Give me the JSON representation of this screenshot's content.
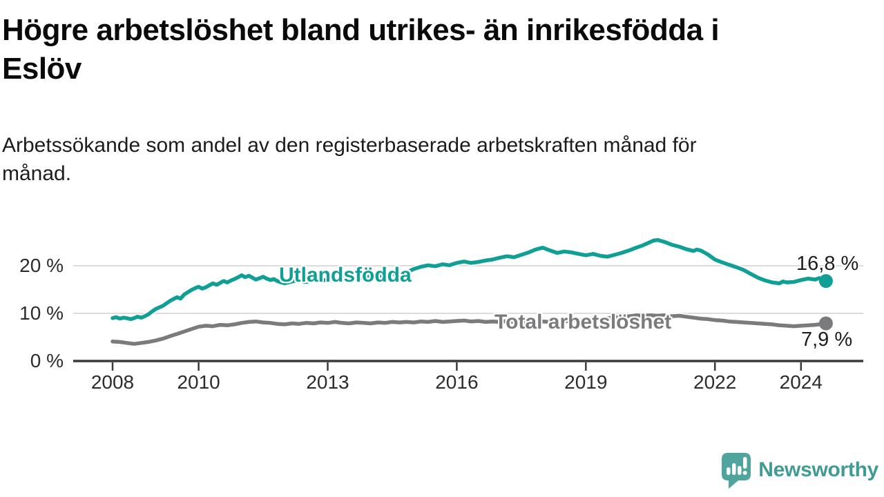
{
  "title_lines": [
    "Högre arbetslöshet bland utrikes- än inrikesfödda i",
    "Eslöv"
  ],
  "subtitle_lines": [
    "Arbetssökande som andel av den registerbaserade arbetskraften månad för",
    "månad."
  ],
  "chart_data": {
    "type": "line",
    "title": "Högre arbetslöshet bland utrikes- än inrikesfödda i Eslöv",
    "subtitle": "Arbetssökande som andel av den registerbaserade arbetskraften månad för månad.",
    "xlabel": "",
    "ylabel": "",
    "xlim": [
      2007.1,
      2025.5
    ],
    "ylim": [
      0,
      27
    ],
    "grid": "horizontal",
    "grid_color": "#dcdcdc",
    "axis_color": "#3a3a3a",
    "tick_label_color": "#2c2c2c",
    "y_ticks": [
      {
        "value": 0,
        "label": "0 %"
      },
      {
        "value": 10,
        "label": "10 %"
      },
      {
        "value": 20,
        "label": "20 %"
      }
    ],
    "x_ticks": [
      {
        "year": 2008,
        "label": "2008"
      },
      {
        "year": 2010,
        "label": "2010"
      },
      {
        "year": 2013,
        "label": "2013"
      },
      {
        "year": 2016,
        "label": "2016"
      },
      {
        "year": 2019,
        "label": "2019"
      },
      {
        "year": 2022,
        "label": "2022"
      },
      {
        "year": 2024,
        "label": "2024"
      }
    ],
    "series": [
      {
        "name": "Utlandsfödda",
        "color": "#0f9f95",
        "end_label": "16,8 %",
        "end_value": 16.8,
        "points": [
          [
            2008.0,
            9.0
          ],
          [
            2008.08,
            9.2
          ],
          [
            2008.17,
            8.9
          ],
          [
            2008.25,
            9.1
          ],
          [
            2008.33,
            9.0
          ],
          [
            2008.42,
            8.8
          ],
          [
            2008.5,
            9.0
          ],
          [
            2008.58,
            9.3
          ],
          [
            2008.67,
            9.1
          ],
          [
            2008.75,
            9.4
          ],
          [
            2008.83,
            9.8
          ],
          [
            2008.92,
            10.4
          ],
          [
            2009.0,
            10.9
          ],
          [
            2009.17,
            11.6
          ],
          [
            2009.33,
            12.6
          ],
          [
            2009.5,
            13.4
          ],
          [
            2009.58,
            13.1
          ],
          [
            2009.67,
            14.0
          ],
          [
            2009.83,
            14.9
          ],
          [
            2009.92,
            15.3
          ],
          [
            2010.0,
            15.6
          ],
          [
            2010.08,
            15.2
          ],
          [
            2010.17,
            15.5
          ],
          [
            2010.25,
            15.9
          ],
          [
            2010.33,
            16.3
          ],
          [
            2010.42,
            16.0
          ],
          [
            2010.5,
            16.4
          ],
          [
            2010.58,
            16.8
          ],
          [
            2010.67,
            16.5
          ],
          [
            2010.75,
            16.9
          ],
          [
            2010.83,
            17.2
          ],
          [
            2010.92,
            17.6
          ],
          [
            2011.0,
            18.0
          ],
          [
            2011.08,
            17.6
          ],
          [
            2011.17,
            17.9
          ],
          [
            2011.25,
            17.5
          ],
          [
            2011.33,
            17.1
          ],
          [
            2011.42,
            17.4
          ],
          [
            2011.5,
            17.7
          ],
          [
            2011.58,
            17.3
          ],
          [
            2011.67,
            17.0
          ],
          [
            2011.75,
            17.2
          ],
          [
            2011.83,
            16.8
          ],
          [
            2011.92,
            16.5
          ],
          [
            2012.0,
            16.3
          ],
          [
            2012.17,
            16.7
          ],
          [
            2012.33,
            16.9
          ],
          [
            2012.5,
            16.6
          ],
          [
            2012.67,
            17.0
          ],
          [
            2012.83,
            16.8
          ],
          [
            2013.0,
            17.1
          ],
          [
            2013.17,
            16.9
          ],
          [
            2013.33,
            17.3
          ],
          [
            2013.5,
            17.1
          ],
          [
            2013.67,
            17.5
          ],
          [
            2013.83,
            17.4
          ],
          [
            2014.0,
            17.8
          ],
          [
            2014.17,
            17.6
          ],
          [
            2014.33,
            18.0
          ],
          [
            2014.5,
            18.3
          ],
          [
            2014.67,
            18.1
          ],
          [
            2014.83,
            18.6
          ],
          [
            2015.0,
            19.3
          ],
          [
            2015.17,
            19.8
          ],
          [
            2015.33,
            20.1
          ],
          [
            2015.5,
            19.9
          ],
          [
            2015.67,
            20.3
          ],
          [
            2015.83,
            20.1
          ],
          [
            2016.0,
            20.6
          ],
          [
            2016.17,
            20.9
          ],
          [
            2016.33,
            20.6
          ],
          [
            2016.5,
            20.8
          ],
          [
            2016.67,
            21.1
          ],
          [
            2016.83,
            21.3
          ],
          [
            2017.0,
            21.7
          ],
          [
            2017.17,
            22.0
          ],
          [
            2017.33,
            21.8
          ],
          [
            2017.5,
            22.3
          ],
          [
            2017.67,
            22.8
          ],
          [
            2017.83,
            23.4
          ],
          [
            2018.0,
            23.8
          ],
          [
            2018.17,
            23.2
          ],
          [
            2018.33,
            22.7
          ],
          [
            2018.5,
            23.0
          ],
          [
            2018.67,
            22.8
          ],
          [
            2018.83,
            22.5
          ],
          [
            2019.0,
            22.2
          ],
          [
            2019.17,
            22.5
          ],
          [
            2019.33,
            22.1
          ],
          [
            2019.5,
            21.9
          ],
          [
            2019.67,
            22.3
          ],
          [
            2019.83,
            22.7
          ],
          [
            2020.0,
            23.2
          ],
          [
            2020.17,
            23.8
          ],
          [
            2020.33,
            24.3
          ],
          [
            2020.5,
            25.0
          ],
          [
            2020.58,
            25.3
          ],
          [
            2020.67,
            25.4
          ],
          [
            2020.83,
            25.0
          ],
          [
            2021.0,
            24.4
          ],
          [
            2021.17,
            24.0
          ],
          [
            2021.33,
            23.5
          ],
          [
            2021.5,
            23.1
          ],
          [
            2021.58,
            23.4
          ],
          [
            2021.67,
            23.2
          ],
          [
            2021.83,
            22.4
          ],
          [
            2022.0,
            21.3
          ],
          [
            2022.17,
            20.7
          ],
          [
            2022.33,
            20.2
          ],
          [
            2022.5,
            19.7
          ],
          [
            2022.67,
            19.1
          ],
          [
            2022.83,
            18.3
          ],
          [
            2023.0,
            17.5
          ],
          [
            2023.17,
            16.9
          ],
          [
            2023.33,
            16.5
          ],
          [
            2023.5,
            16.3
          ],
          [
            2023.58,
            16.7
          ],
          [
            2023.67,
            16.5
          ],
          [
            2023.83,
            16.6
          ],
          [
            2024.0,
            17.0
          ],
          [
            2024.17,
            17.3
          ],
          [
            2024.33,
            17.1
          ],
          [
            2024.42,
            17.4
          ],
          [
            2024.5,
            17.2
          ],
          [
            2024.58,
            16.8
          ]
        ]
      },
      {
        "name": "Total arbetslöshet",
        "color": "#7b7b7e",
        "end_label": "7,9 %",
        "end_value": 7.9,
        "points": [
          [
            2008.0,
            4.1
          ],
          [
            2008.17,
            4.0
          ],
          [
            2008.33,
            3.8
          ],
          [
            2008.5,
            3.6
          ],
          [
            2008.67,
            3.8
          ],
          [
            2008.83,
            4.0
          ],
          [
            2009.0,
            4.3
          ],
          [
            2009.17,
            4.7
          ],
          [
            2009.33,
            5.2
          ],
          [
            2009.5,
            5.7
          ],
          [
            2009.67,
            6.2
          ],
          [
            2009.83,
            6.7
          ],
          [
            2010.0,
            7.2
          ],
          [
            2010.17,
            7.4
          ],
          [
            2010.33,
            7.3
          ],
          [
            2010.5,
            7.6
          ],
          [
            2010.67,
            7.5
          ],
          [
            2010.83,
            7.7
          ],
          [
            2011.0,
            8.0
          ],
          [
            2011.17,
            8.2
          ],
          [
            2011.33,
            8.3
          ],
          [
            2011.5,
            8.1
          ],
          [
            2011.67,
            8.0
          ],
          [
            2011.83,
            7.8
          ],
          [
            2012.0,
            7.7
          ],
          [
            2012.17,
            7.9
          ],
          [
            2012.33,
            7.8
          ],
          [
            2012.5,
            8.0
          ],
          [
            2012.67,
            7.9
          ],
          [
            2012.83,
            8.1
          ],
          [
            2013.0,
            8.0
          ],
          [
            2013.17,
            8.2
          ],
          [
            2013.33,
            8.0
          ],
          [
            2013.5,
            7.9
          ],
          [
            2013.67,
            8.1
          ],
          [
            2013.83,
            8.0
          ],
          [
            2014.0,
            7.9
          ],
          [
            2014.17,
            8.1
          ],
          [
            2014.33,
            8.0
          ],
          [
            2014.5,
            8.2
          ],
          [
            2014.67,
            8.1
          ],
          [
            2014.83,
            8.2
          ],
          [
            2015.0,
            8.1
          ],
          [
            2015.17,
            8.3
          ],
          [
            2015.33,
            8.2
          ],
          [
            2015.5,
            8.4
          ],
          [
            2015.67,
            8.2
          ],
          [
            2015.83,
            8.3
          ],
          [
            2016.0,
            8.4
          ],
          [
            2016.17,
            8.5
          ],
          [
            2016.33,
            8.3
          ],
          [
            2016.5,
            8.4
          ],
          [
            2016.67,
            8.2
          ],
          [
            2016.83,
            8.3
          ],
          [
            2017.0,
            8.2
          ],
          [
            2017.17,
            8.4
          ],
          [
            2017.33,
            8.2
          ],
          [
            2017.5,
            8.0
          ],
          [
            2017.67,
            8.2
          ],
          [
            2017.83,
            8.1
          ],
          [
            2018.0,
            8.3
          ],
          [
            2018.17,
            8.2
          ],
          [
            2018.33,
            8.4
          ],
          [
            2018.5,
            8.3
          ],
          [
            2018.67,
            8.5
          ],
          [
            2018.83,
            8.6
          ],
          [
            2019.0,
            8.7
          ],
          [
            2019.17,
            8.9
          ],
          [
            2019.33,
            8.8
          ],
          [
            2019.5,
            9.0
          ],
          [
            2019.67,
            9.1
          ],
          [
            2019.83,
            9.3
          ],
          [
            2020.0,
            9.4
          ],
          [
            2020.17,
            9.6
          ],
          [
            2020.33,
            9.5
          ],
          [
            2020.5,
            9.6
          ],
          [
            2020.67,
            9.5
          ],
          [
            2020.83,
            9.6
          ],
          [
            2021.0,
            9.4
          ],
          [
            2021.17,
            9.5
          ],
          [
            2021.33,
            9.3
          ],
          [
            2021.5,
            9.1
          ],
          [
            2021.67,
            8.9
          ],
          [
            2021.83,
            8.8
          ],
          [
            2022.0,
            8.6
          ],
          [
            2022.17,
            8.5
          ],
          [
            2022.33,
            8.3
          ],
          [
            2022.5,
            8.2
          ],
          [
            2022.67,
            8.1
          ],
          [
            2022.83,
            8.0
          ],
          [
            2023.0,
            7.9
          ],
          [
            2023.17,
            7.8
          ],
          [
            2023.33,
            7.7
          ],
          [
            2023.5,
            7.5
          ],
          [
            2023.67,
            7.4
          ],
          [
            2023.83,
            7.3
          ],
          [
            2024.0,
            7.4
          ],
          [
            2024.17,
            7.5
          ],
          [
            2024.33,
            7.6
          ],
          [
            2024.42,
            7.7
          ],
          [
            2024.5,
            7.8
          ],
          [
            2024.58,
            7.9
          ]
        ]
      }
    ],
    "legend_position": "inline-labels"
  },
  "branding": {
    "logo_text": "Newsworthy",
    "logo_icon": "speech-bubble-bar-chart-exclamation",
    "logo_icon_color": "#4fa59d",
    "logo_text_color": "#3f9b93"
  }
}
